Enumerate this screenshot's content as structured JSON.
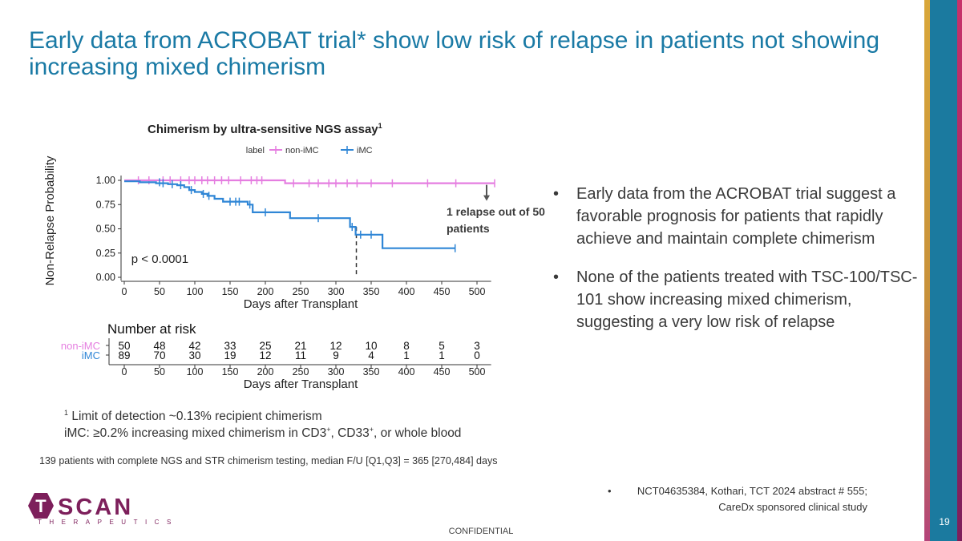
{
  "slide": {
    "title": "Early data from ACROBAT trial* show low risk of relapse in patients not showing increasing mixed chimerism",
    "chart_heading": "Chimerism by ultra-sensitive NGS assay",
    "chart_heading_sup": "1",
    "annotation": "1 relapse out of 50 patients",
    "bullets": [
      "Early data from the ACROBAT trial suggest a favorable prognosis for patients that rapidly achieve and maintain complete chimerism",
      "None of the patients treated with TSC-100/TSC-101 show increasing mixed chimerism, suggesting a very low risk of relapse"
    ],
    "footnote1_sup": "1",
    "footnote1": " Limit of detection ~0.13% recipient chimerism",
    "footnote2_a": "iMC: ≥0.2% increasing mixed chimerism in CD3",
    "footnote2_sup1": "+",
    "footnote2_b": ", CD33",
    "footnote2_sup2": "+",
    "footnote2_c": ", or whole blood",
    "footnote3": "139 patients with complete NGS and STR chimerism testing, median F/U [Q1,Q3] = 365 [270,484] days",
    "reference_bullet": "•",
    "reference_line1": "NCT04635384, Kothari, TCT 2024 abstract # 555;",
    "reference_line2": "CareDx sponsored clinical study",
    "logo_text": "SCAN",
    "logo_letter": "T",
    "logo_subtitle": "THERAPEUTICS",
    "confidential": "CONFIDENTIAL",
    "page_number": "19"
  },
  "colors": {
    "title": "#1a7aa5",
    "non_imc": "#e57ee0",
    "imc": "#2f86d6",
    "brand": "#7d1f5b"
  },
  "chart_data": {
    "type": "line",
    "subtype": "kaplan-meier",
    "legend_title": "label",
    "legend_placement": "top",
    "xlabel": "Days after Transplant",
    "ylabel": "Non-Relapse Probability",
    "xlim": [
      0,
      520
    ],
    "ylim": [
      0,
      1
    ],
    "x_ticks": [
      0,
      50,
      100,
      150,
      200,
      250,
      300,
      350,
      400,
      450,
      500
    ],
    "y_ticks": [
      "0.00",
      "0.25",
      "0.50",
      "0.75",
      "1.00"
    ],
    "y_tick_values": [
      0,
      0.25,
      0.5,
      0.75,
      1.0
    ],
    "pvalue": "p < 0.0001",
    "marker_day": 329,
    "series": [
      {
        "name": "non-iMC",
        "color": "#e57ee0",
        "steps": [
          [
            0,
            1.0
          ],
          [
            228,
            1.0
          ],
          [
            228,
            0.97
          ],
          [
            525,
            0.97
          ]
        ],
        "censors": [
          [
            20,
            1.0
          ],
          [
            35,
            1.0
          ],
          [
            55,
            1.0
          ],
          [
            65,
            1.0
          ],
          [
            80,
            1.0
          ],
          [
            92,
            1.0
          ],
          [
            100,
            1.0
          ],
          [
            110,
            1.0
          ],
          [
            118,
            1.0
          ],
          [
            128,
            1.0
          ],
          [
            138,
            1.0
          ],
          [
            148,
            1.0
          ],
          [
            165,
            1.0
          ],
          [
            180,
            1.0
          ],
          [
            188,
            1.0
          ],
          [
            195,
            1.0
          ],
          [
            240,
            0.97
          ],
          [
            262,
            0.97
          ],
          [
            275,
            0.97
          ],
          [
            290,
            0.97
          ],
          [
            300,
            0.97
          ],
          [
            316,
            0.97
          ],
          [
            330,
            0.97
          ],
          [
            350,
            0.97
          ],
          [
            380,
            0.97
          ],
          [
            430,
            0.97
          ],
          [
            470,
            0.97
          ],
          [
            525,
            0.97
          ]
        ]
      },
      {
        "name": "iMC",
        "color": "#2f86d6",
        "steps": [
          [
            0,
            0.99
          ],
          [
            22,
            0.99
          ],
          [
            22,
            0.98
          ],
          [
            45,
            0.98
          ],
          [
            45,
            0.97
          ],
          [
            62,
            0.97
          ],
          [
            62,
            0.96
          ],
          [
            75,
            0.96
          ],
          [
            75,
            0.95
          ],
          [
            85,
            0.95
          ],
          [
            85,
            0.93
          ],
          [
            92,
            0.93
          ],
          [
            92,
            0.9
          ],
          [
            100,
            0.9
          ],
          [
            100,
            0.88
          ],
          [
            110,
            0.88
          ],
          [
            110,
            0.86
          ],
          [
            118,
            0.86
          ],
          [
            118,
            0.84
          ],
          [
            128,
            0.84
          ],
          [
            128,
            0.81
          ],
          [
            140,
            0.81
          ],
          [
            140,
            0.78
          ],
          [
            175,
            0.78
          ],
          [
            175,
            0.75
          ],
          [
            182,
            0.75
          ],
          [
            182,
            0.67
          ],
          [
            235,
            0.67
          ],
          [
            235,
            0.61
          ],
          [
            320,
            0.61
          ],
          [
            320,
            0.52
          ],
          [
            328,
            0.52
          ],
          [
            328,
            0.44
          ],
          [
            366,
            0.44
          ],
          [
            366,
            0.3
          ],
          [
            469,
            0.3
          ]
        ],
        "censors": [
          [
            50,
            0.98
          ],
          [
            55,
            0.97
          ],
          [
            68,
            0.96
          ],
          [
            80,
            0.95
          ],
          [
            95,
            0.9
          ],
          [
            112,
            0.86
          ],
          [
            120,
            0.84
          ],
          [
            150,
            0.78
          ],
          [
            158,
            0.78
          ],
          [
            163,
            0.78
          ],
          [
            178,
            0.75
          ],
          [
            200,
            0.67
          ],
          [
            275,
            0.61
          ],
          [
            323,
            0.52
          ],
          [
            335,
            0.44
          ],
          [
            350,
            0.44
          ],
          [
            469,
            0.3
          ]
        ]
      }
    ],
    "risk_table": {
      "title": "Number at risk",
      "xlabel": "Days after Transplant",
      "x": [
        0,
        50,
        100,
        150,
        200,
        250,
        300,
        350,
        400,
        450,
        500
      ],
      "rows": [
        {
          "name": "non-iMC",
          "color": "#e57ee0",
          "values": [
            50,
            48,
            42,
            33,
            25,
            21,
            12,
            10,
            8,
            5,
            3
          ]
        },
        {
          "name": "iMC",
          "color": "#2f86d6",
          "values": [
            89,
            70,
            30,
            19,
            12,
            11,
            9,
            4,
            1,
            1,
            0
          ]
        }
      ]
    }
  }
}
